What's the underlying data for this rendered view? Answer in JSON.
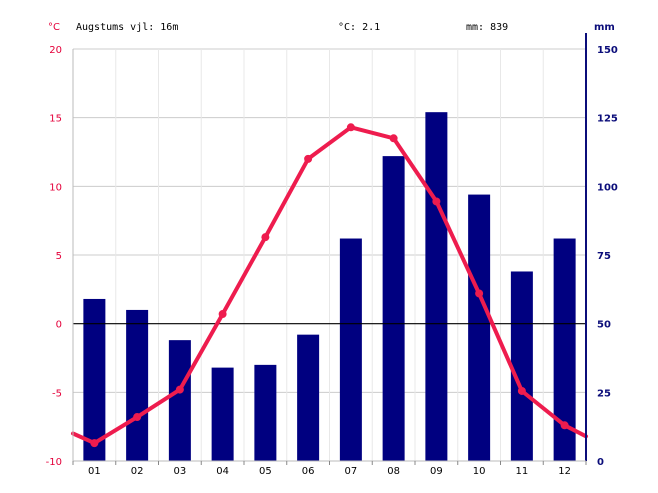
{
  "header": {
    "altitude_label": "Augstums vjl: 16m",
    "temp_label": "°C: 2.1",
    "precip_label": "mm: 839",
    "left_unit": "°C",
    "right_unit": "mm"
  },
  "colors": {
    "temperature": "#ee1c4e",
    "precipitation": "#000080",
    "left_axis_text": "#e4003a",
    "right_axis_text": "#0b0d7a",
    "grid": "#cccccc",
    "zero_line": "#000000"
  },
  "chart_data": {
    "type": "bar+line",
    "title": "",
    "categories": [
      "01",
      "02",
      "03",
      "04",
      "05",
      "06",
      "07",
      "08",
      "09",
      "10",
      "11",
      "12"
    ],
    "series": [
      {
        "name": "Precipitation (mm)",
        "type": "bar",
        "axis": "right",
        "values": [
          59,
          55,
          44,
          34,
          35,
          46,
          81,
          111,
          127,
          97,
          69,
          81
        ]
      },
      {
        "name": "Temperature (°C)",
        "type": "line",
        "axis": "left",
        "values": [
          -8.7,
          -6.8,
          -4.8,
          0.7,
          6.3,
          12.0,
          14.3,
          13.5,
          8.9,
          2.2,
          -4.9,
          -7.4
        ],
        "edge_start": -8.0,
        "edge_end": -8.2
      }
    ],
    "left_axis": {
      "label": "°C",
      "range": [
        -10,
        20
      ],
      "ticks": [
        -10,
        -5,
        0,
        5,
        10,
        15,
        20
      ]
    },
    "right_axis": {
      "label": "mm",
      "range": [
        0,
        150
      ],
      "ticks": [
        0,
        25,
        50,
        75,
        100,
        125,
        150
      ]
    },
    "grid": true
  }
}
